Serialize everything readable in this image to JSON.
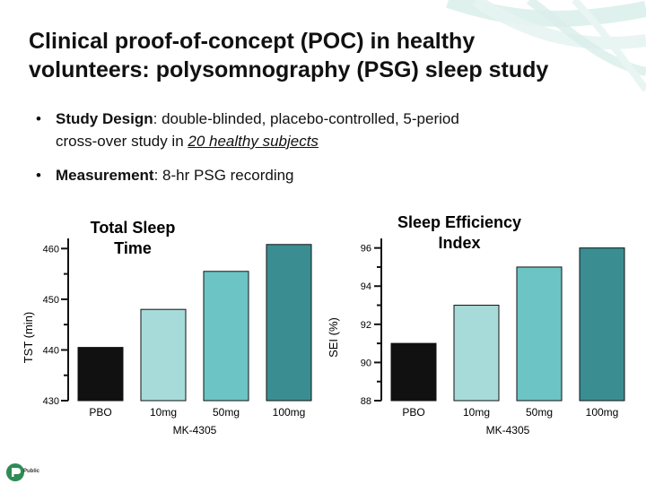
{
  "slide": {
    "title_line1": "Clinical proof-of-concept (POC) in healthy",
    "title_line2": "volunteers: polysomnography (PSG) sleep study",
    "bullet1_strong": "Study Design",
    "bullet1_rest": ": double-blinded, placebo-controlled, 5-period",
    "bullet1_line2_pre": "cross-over study in ",
    "bullet1_line2_u": "20 healthy subjects",
    "bullet2_strong": "Measurement",
    "bullet2_rest": ": 8-hr PSG recording",
    "logo_text": "Public",
    "bullet_char": "•"
  },
  "chart_data": [
    {
      "type": "bar",
      "title": "Total Sleep Time",
      "ylabel": "TST (min)",
      "ylim": [
        430,
        462
      ],
      "yticks": [
        430,
        440,
        450,
        460
      ],
      "categories": [
        "PBO",
        "10mg",
        "50mg",
        "100mg"
      ],
      "group_label": "MK-4305",
      "values": [
        440.5,
        448,
        455.5,
        460.8
      ],
      "colors": [
        "#111111",
        "#a7dbd9",
        "#6cc4c5",
        "#3a8e92"
      ]
    },
    {
      "type": "bar",
      "title": "Sleep Efficiency Index",
      "ylabel": "SEI (%)",
      "ylim": [
        88,
        96.5
      ],
      "yticks": [
        88,
        90,
        92,
        94,
        96
      ],
      "categories": [
        "PBO",
        "10mg",
        "50mg",
        "100mg"
      ],
      "group_label": "MK-4305",
      "values": [
        91.0,
        93.0,
        95.0,
        96.0
      ],
      "colors": [
        "#111111",
        "#a7dbd9",
        "#6cc4c5",
        "#3a8e92"
      ]
    }
  ]
}
